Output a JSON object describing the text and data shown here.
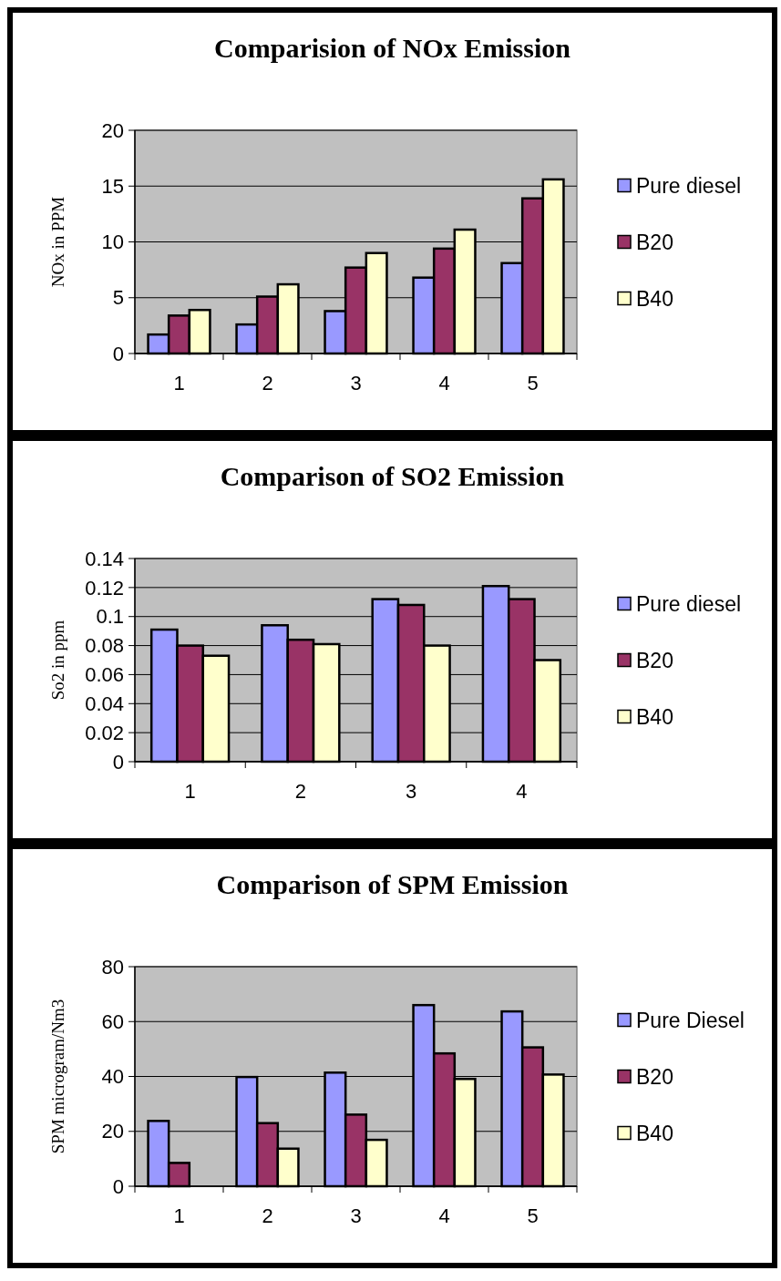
{
  "chart_data": [
    {
      "type": "bar",
      "title": "Comparision  of  NOx Emission",
      "ylabel": "NOx in PPM",
      "categories": [
        "1",
        "2",
        "3",
        "4",
        "5"
      ],
      "ylim": [
        0,
        20
      ],
      "yticks": [
        0,
        5,
        10,
        15,
        20
      ],
      "grid": "y",
      "legend": "right",
      "series": [
        {
          "name": "Pure diesel",
          "color": "#9999ff",
          "values": [
            1.7,
            2.6,
            3.8,
            6.8,
            8.1
          ]
        },
        {
          "name": "B20",
          "color": "#993366",
          "values": [
            3.4,
            5.1,
            7.7,
            9.4,
            13.9
          ]
        },
        {
          "name": "B40",
          "color": "#ffffcc",
          "values": [
            3.9,
            6.2,
            9.0,
            11.1,
            15.6
          ]
        }
      ]
    },
    {
      "type": "bar",
      "title": "Comparison of SO2 Emission",
      "ylabel": "So2 in ppm",
      "categories": [
        "1",
        "2",
        "3",
        "4"
      ],
      "ylim": [
        0,
        0.14
      ],
      "yticks": [
        0,
        0.02,
        0.04,
        0.06,
        0.08,
        0.1,
        0.12,
        0.14
      ],
      "grid": "y",
      "legend": "right",
      "series": [
        {
          "name": "Pure diesel",
          "color": "#9999ff",
          "values": [
            0.091,
            0.094,
            0.112,
            0.121
          ]
        },
        {
          "name": "B20",
          "color": "#993366",
          "values": [
            0.08,
            0.084,
            0.108,
            0.112
          ]
        },
        {
          "name": "B40",
          "color": "#ffffcc",
          "values": [
            0.073,
            0.081,
            0.08,
            0.07
          ]
        }
      ]
    },
    {
      "type": "bar",
      "title": "Comparison of SPM Emission",
      "ylabel": "SPM microgram/Nm3",
      "categories": [
        "1",
        "2",
        "3",
        "4",
        "5"
      ],
      "ylim": [
        0,
        80
      ],
      "yticks": [
        0,
        20,
        40,
        60,
        80
      ],
      "grid": "y",
      "legend": "right",
      "series": [
        {
          "name": "Pure Diesel",
          "color": "#9999ff",
          "values": [
            23.8,
            39.8,
            41.4,
            66.0,
            63.7
          ]
        },
        {
          "name": "B20",
          "color": "#993366",
          "values": [
            8.5,
            23.0,
            26.1,
            48.4,
            50.6
          ]
        },
        {
          "name": "B40",
          "color": "#ffffcc",
          "values": [
            null,
            13.7,
            16.9,
            39.1,
            40.7
          ]
        }
      ]
    }
  ]
}
